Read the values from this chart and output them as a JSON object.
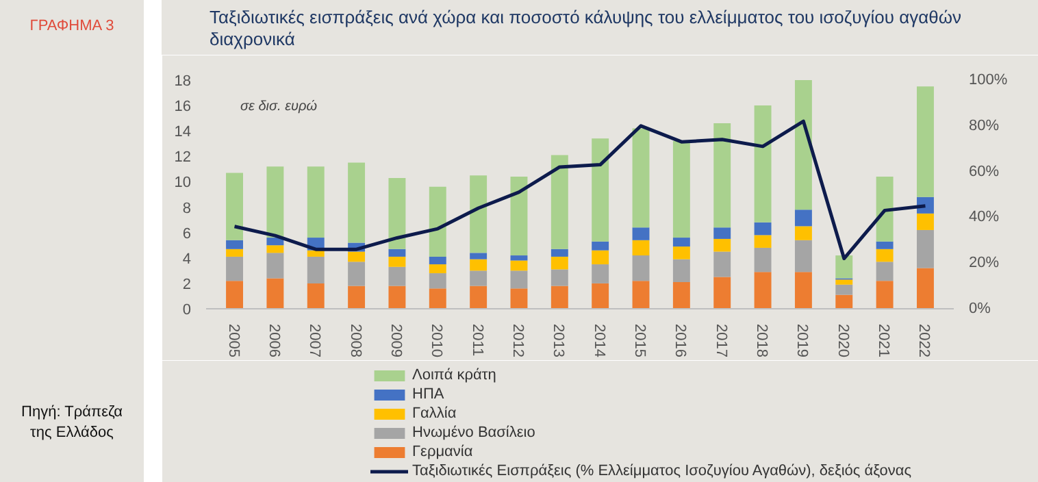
{
  "chart_data": {
    "type": "bar",
    "stacked": true,
    "title": "Ταξιδιωτικές εισπράξεις ανά χώρα και ποσοστό κάλυψης του ελλείμματος του ισοζυγίου αγαθών διαχρονικά",
    "annotations": [
      "ΓΡΑΦΗΜΑ 3",
      "σε δισ. ευρώ",
      "Πηγή: Τράπεζα της Ελλάδος"
    ],
    "categories": [
      "2005",
      "2006",
      "2007",
      "2008",
      "2009",
      "2010",
      "2011",
      "2012",
      "2013",
      "2014",
      "2015",
      "2016",
      "2017",
      "2018",
      "2019",
      "2020",
      "2021",
      "2022"
    ],
    "series": [
      {
        "name": "Γερμανία",
        "color": "#ed7d31",
        "values": [
          2.2,
          2.4,
          2.0,
          1.8,
          1.8,
          1.6,
          1.8,
          1.6,
          1.8,
          2.0,
          2.2,
          2.1,
          2.5,
          2.9,
          2.9,
          1.1,
          2.2,
          3.2
        ]
      },
      {
        "name": "Ηνωμένο Βασίλειο",
        "color": "#a5a5a5",
        "values": [
          1.9,
          2.0,
          2.1,
          1.9,
          1.5,
          1.2,
          1.2,
          1.4,
          1.3,
          1.5,
          2.0,
          1.8,
          2.0,
          1.9,
          2.5,
          0.8,
          1.5,
          3.0
        ]
      },
      {
        "name": "Γαλλία",
        "color": "#ffc000",
        "values": [
          0.6,
          0.6,
          0.5,
          0.8,
          0.8,
          0.7,
          0.9,
          0.8,
          1.0,
          1.1,
          1.2,
          1.0,
          1.0,
          1.0,
          1.1,
          0.4,
          1.0,
          1.3
        ]
      },
      {
        "name": "ΗΠΑ",
        "color": "#4472c4",
        "values": [
          0.7,
          0.6,
          1.0,
          0.7,
          0.6,
          0.6,
          0.5,
          0.4,
          0.6,
          0.7,
          1.0,
          0.7,
          0.9,
          1.0,
          1.3,
          0.1,
          0.6,
          1.3
        ]
      },
      {
        "name": "Λοιπά κράτη",
        "color": "#a9d18e",
        "values": [
          5.3,
          5.6,
          5.6,
          6.3,
          5.6,
          5.5,
          6.1,
          6.2,
          7.4,
          8.1,
          7.8,
          7.6,
          8.2,
          9.2,
          10.2,
          1.8,
          5.1,
          8.7
        ]
      },
      {
        "name": "Ταξιδιωτικές Εισπράξεις (% Ελλείμματος Ισοζυγίου Αγαθών), δεξιός άξονας",
        "type": "line",
        "axis": "y2",
        "color": "#0d1b4c",
        "values": [
          36,
          32,
          26,
          26,
          31,
          35,
          44,
          51,
          62,
          63,
          80,
          73,
          74,
          71,
          82,
          22,
          43,
          45
        ]
      }
    ],
    "ylim": [
      0,
      18
    ],
    "yticks": [
      0,
      2,
      4,
      6,
      8,
      10,
      12,
      14,
      16,
      18
    ],
    "y2lim": [
      0,
      100
    ],
    "y2ticks": [
      {
        "value": 0,
        "label": "0%"
      },
      {
        "value": 20,
        "label": "20%"
      },
      {
        "value": 40,
        "label": "40%"
      },
      {
        "value": 60,
        "label": "60%"
      },
      {
        "value": 80,
        "label": "80%"
      },
      {
        "value": 100,
        "label": "100%"
      }
    ],
    "grid": false,
    "legend": "bottom",
    "marker": "none",
    "line_style": "solid"
  }
}
